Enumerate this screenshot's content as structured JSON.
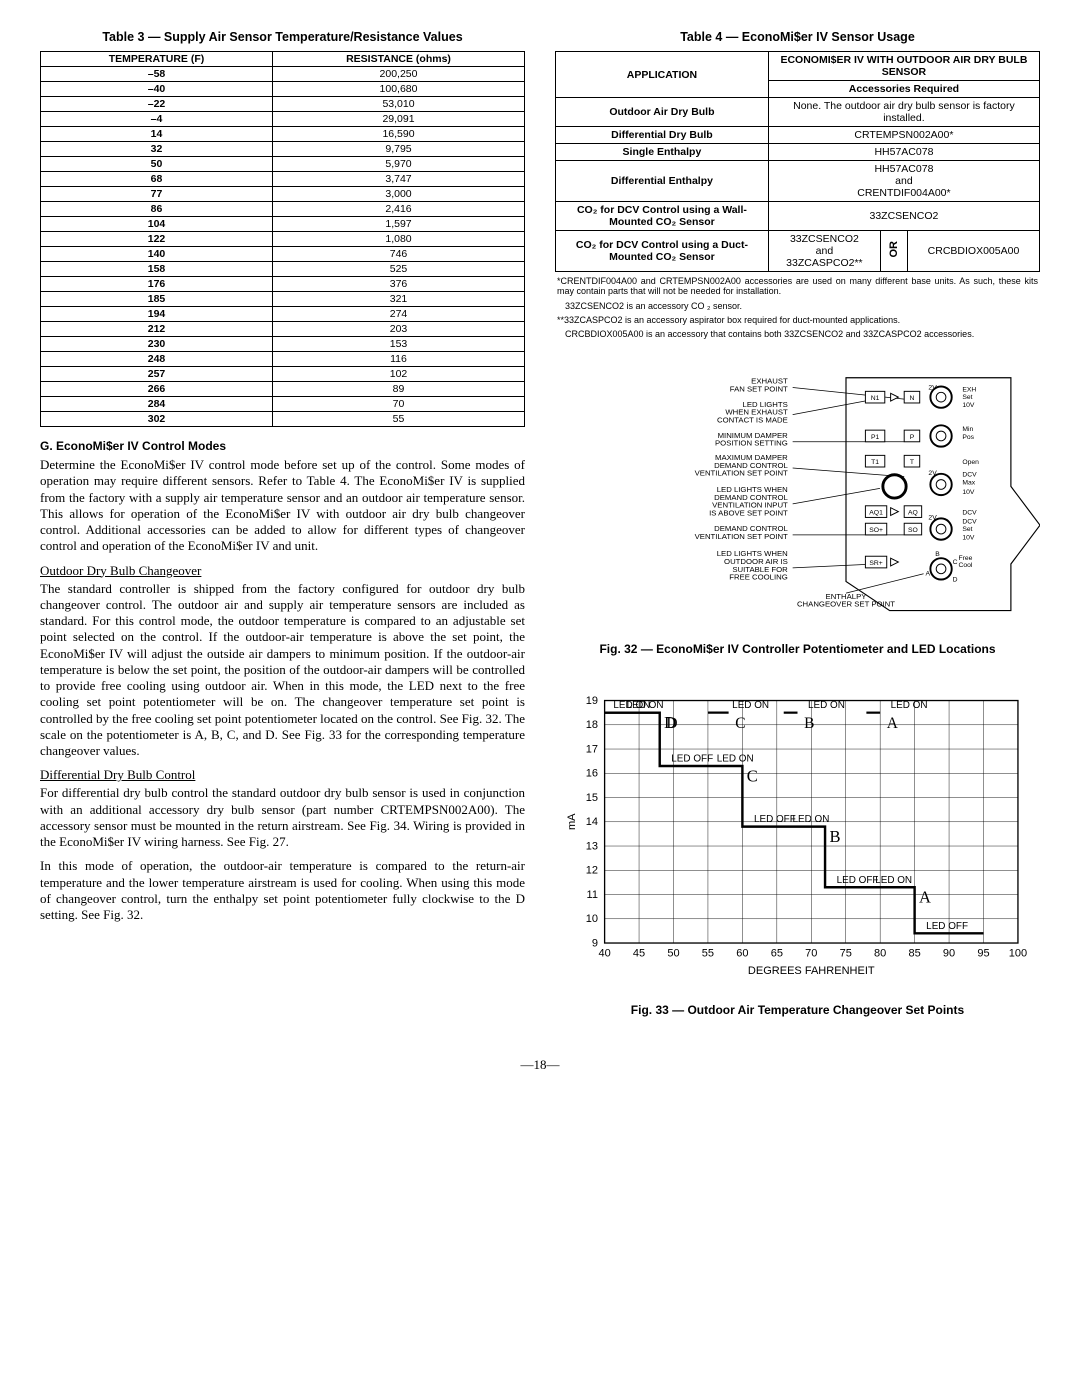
{
  "table3": {
    "title": "Table 3 — Supply Air Sensor Temperature/Resistance Values",
    "col1": "TEMPERATURE (F)",
    "col2": "RESISTANCE (ohms)",
    "rows": [
      [
        "–58",
        "200,250"
      ],
      [
        "–40",
        "100,680"
      ],
      [
        "–22",
        "53,010"
      ],
      [
        "–4",
        "29,091"
      ],
      [
        "14",
        "16,590"
      ],
      [
        "32",
        "9,795"
      ],
      [
        "50",
        "5,970"
      ],
      [
        "68",
        "3,747"
      ],
      [
        "77",
        "3,000"
      ],
      [
        "86",
        "2,416"
      ],
      [
        "104",
        "1,597"
      ],
      [
        "122",
        "1,080"
      ],
      [
        "140",
        "746"
      ],
      [
        "158",
        "525"
      ],
      [
        "176",
        "376"
      ],
      [
        "185",
        "321"
      ],
      [
        "194",
        "274"
      ],
      [
        "212",
        "203"
      ],
      [
        "230",
        "153"
      ],
      [
        "248",
        "116"
      ],
      [
        "257",
        "102"
      ],
      [
        "266",
        "89"
      ],
      [
        "284",
        "70"
      ],
      [
        "302",
        "55"
      ]
    ]
  },
  "sectionG": {
    "heading": "G. EconoMi$er IV Control Modes",
    "p1": "Determine the EconoMi$er IV control mode before set up of the control. Some modes of operation may require different sensors. Refer to Table 4. The EconoMi$er IV is supplied from the factory with a supply air temperature sensor and an outdoor air temperature sensor. This allows for operation of the EconoMi$er IV with outdoor air dry bulb changeover control. Additional accessories can be added to allow for different types of changeover control and operation of the EconoMi$er IV and unit.",
    "sub1": "Outdoor Dry Bulb Changeover",
    "p2": "The standard controller is shipped from the factory configured for outdoor dry bulb changeover control. The outdoor air and supply air temperature sensors are included as standard. For this control mode, the outdoor temperature is compared to an adjustable set point selected on the control. If the outdoor-air temperature is above the set point, the EconoMi$er IV will adjust the outside air dampers to minimum position. If the outdoor-air temperature is below the set point, the position of the outdoor-air dampers will be controlled to provide free cooling using outdoor air. When in this mode, the LED next to the free cooling set point potentiometer will be on. The changeover temperature set point is controlled by the free cooling set point potentiometer located on the control. See Fig. 32. The scale on the potentiometer is A, B, C, and D. See Fig. 33 for the corresponding temperature changeover values.",
    "sub2": "Differential Dry Bulb Control",
    "p3": "For differential dry bulb control the standard outdoor dry bulb sensor is used in conjunction with an additional accessory dry bulb sensor (part number CRTEMPSN002A00). The accessory sensor must be mounted in the return airstream. See Fig. 34. Wiring is provided in the EconoMi$er IV wiring harness. See Fig. 27.",
    "p4": "In this mode of operation, the outdoor-air temperature is compared to the return-air temperature and the lower temperature airstream is used for cooling. When using this mode of changeover control, turn the enthalpy set point potentiometer fully clockwise to the D setting. See Fig. 32."
  },
  "table4": {
    "title": "Table 4 — EconoMi$er IV Sensor Usage",
    "h_app": "APPLICATION",
    "h_main": "ECONOMI$ER IV WITH OUTDOOR AIR DRY BULB SENSOR",
    "h_acc": "Accessories Required",
    "r1a": "Outdoor Air Dry Bulb",
    "r1b": "None. The outdoor air dry bulb sensor is factory installed.",
    "r2a": "Differential Dry Bulb",
    "r2b": "CRTEMPSN002A00*",
    "r3a": "Single Enthalpy",
    "r3b": "HH57AC078",
    "r4a": "Differential Enthalpy",
    "r4b": "HH57AC078\nand\nCRENTDIF004A00*",
    "r5a": "CO₂ for DCV Control using a Wall-Mounted CO₂ Sensor",
    "r5b": "33ZCSENCO2",
    "r6a": "CO₂ for DCV Control using a Duct-Mounted CO₂ Sensor",
    "r6b1": "33ZCSENCO2\nand\n33ZCASPCO2**",
    "r6or": "OR",
    "r6b2": "CRCBDIOX005A00"
  },
  "footnotes": {
    "f1": "*CRENTDIF004A00 and CRTEMPSN002A00 accessories are used on many different base units. As such, these kits may contain parts that will not be needed for installation.",
    "f2": "33ZCSENCO2 is an accessory CO ₂ sensor.",
    "f3": "**33ZCASPCO2 is an accessory aspirator box required for duct-mounted applications.",
    "f4": "CRCBDIOX005A00 is an accessory that contains both 33ZCSENCO2 and 33ZCASPCO2 accessories."
  },
  "fig32": {
    "caption": "Fig. 32 — EconoMi$er IV Controller Potentiometer and LED Locations",
    "labels": {
      "l1": "EXHAUST FAN SET POINT",
      "l2": "LED LIGHTS WHEN EXHAUST CONTACT IS MADE",
      "l3": "MINIMUM DAMPER POSITION SETTING",
      "l4": "MAXIMUM DAMPER DEMAND CONTROL VENTILATION SET POINT",
      "l5": "LED LIGHTS WHEN DEMAND CONTROL VENTILATION INPUT IS ABOVE SET POINT",
      "l6": "DEMAND CONTROL VENTILATION SET POINT",
      "l7": "LED LIGHTS WHEN OUTDOOR AIR IS SUITABLE FOR FREE COOLING",
      "l8": "ENTHALPY CHANGEOVER SET POINT"
    },
    "ctrl": {
      "n1": "N1",
      "n": "N",
      "exh": "EXH",
      "set": "Set",
      "p1": "P1",
      "p": "P",
      "min": "Min",
      "pos": "Pos",
      "t1": "T1",
      "t": "T",
      "open": "Open",
      "dcv": "DCV",
      "max": "Max",
      "ten": "10V",
      "two": "2V",
      "aq1": "AQ1",
      "aq": "AQ",
      "dcvr": "DCV",
      "so1": "SO+",
      "so": "SO",
      "sr": "SR+",
      "free": "Free",
      "cool": "Cool",
      "a": "A",
      "b": "B",
      "c": "C",
      "d": "D"
    }
  },
  "fig33": {
    "caption": "Fig. 33 — Outdoor Air Temperature Changeover Set Points",
    "xlabel": "DEGREES FAHRENHEIT",
    "ylabel": "mA",
    "ledon": "LED ON",
    "ledoff": "LED OFF",
    "letters": {
      "A": "A",
      "B": "B",
      "C": "C",
      "D": "D"
    },
    "xlim": [
      40,
      100
    ],
    "xticks": [
      40,
      45,
      50,
      55,
      60,
      65,
      70,
      75,
      80,
      85,
      90,
      95,
      100
    ],
    "ylim": [
      9,
      19
    ],
    "yticks": [
      9,
      10,
      11,
      12,
      13,
      14,
      15,
      16,
      17,
      18,
      19
    ],
    "segments": [
      {
        "letter": "D",
        "on_x": 48,
        "off_x": 55
      },
      {
        "letter": "C",
        "on_x": 58,
        "off_x": 66
      },
      {
        "letter": "B",
        "on_x": 68,
        "off_x": 78
      },
      {
        "letter": "A",
        "on_x": 80,
        "off_x": 90
      }
    ]
  },
  "pagenum": "—18—"
}
